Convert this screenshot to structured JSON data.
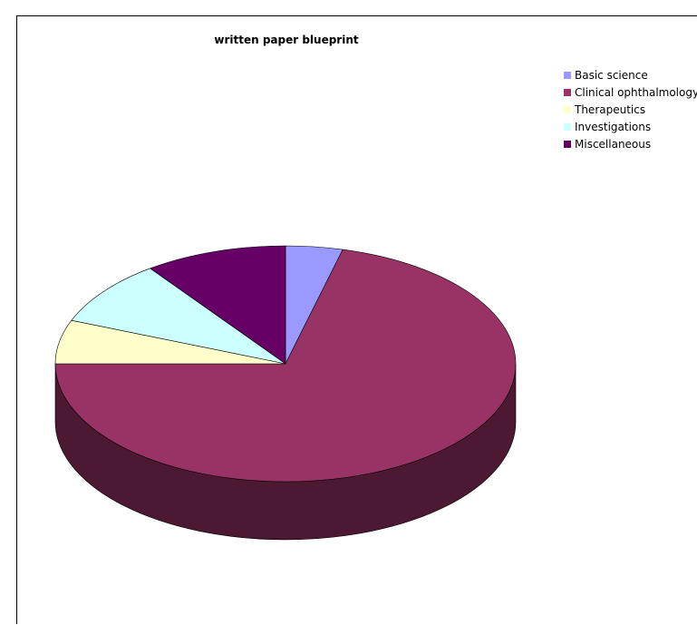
{
  "chart_data": {
    "type": "pie",
    "title": "written paper blueprint",
    "legend_position": "top-right",
    "style": "3d-pie",
    "slices": [
      {
        "label": "Basic science",
        "value": 4,
        "color": "#9999ff",
        "side_color": "#5e5ea0"
      },
      {
        "label": "Clinical ophthalmology",
        "value": 71,
        "color": "#993366",
        "side_color": "#4d1832"
      },
      {
        "label": "Therapeutics",
        "value": 6,
        "color": "#ffffcc",
        "side_color": "#a6a684"
      },
      {
        "label": "Investigations",
        "value": 9,
        "color": "#ccffff",
        "side_color": "#84a6a6"
      },
      {
        "label": "Miscellaneous",
        "value": 10,
        "color": "#660066",
        "side_color": "#3a003a"
      }
    ]
  }
}
